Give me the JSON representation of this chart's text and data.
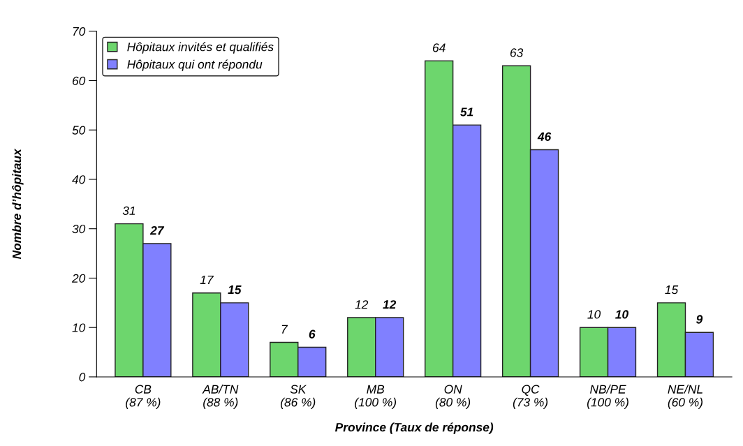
{
  "chart_data": {
    "type": "bar",
    "xlabel": "Province (Taux de réponse)",
    "ylabel": "Nombre d’hôpitaux",
    "categories": [
      "CB\n(87 %)",
      "AB/TN\n(88 %)",
      "SK\n(86 %)",
      "MB\n(100 %)",
      "ON\n(80 %)",
      "QC\n(73 %)",
      "NB/PE\n(100 %)",
      "NE/NL\n(60 %)"
    ],
    "series": [
      {
        "name": "Hôpitaux invités et qualifiés",
        "color": "#6dd66d",
        "values": [
          31,
          17,
          7,
          12,
          64,
          63,
          10,
          15
        ]
      },
      {
        "name": "Hôpitaux qui ont répondu",
        "color": "#8080ff",
        "values": [
          27,
          15,
          6,
          12,
          51,
          46,
          10,
          9
        ]
      }
    ],
    "ylim": [
      0,
      70
    ],
    "yticks": [
      0,
      10,
      20,
      30,
      40,
      50,
      60,
      70
    ],
    "data_labels": true,
    "legend": "top left",
    "grid": false
  }
}
